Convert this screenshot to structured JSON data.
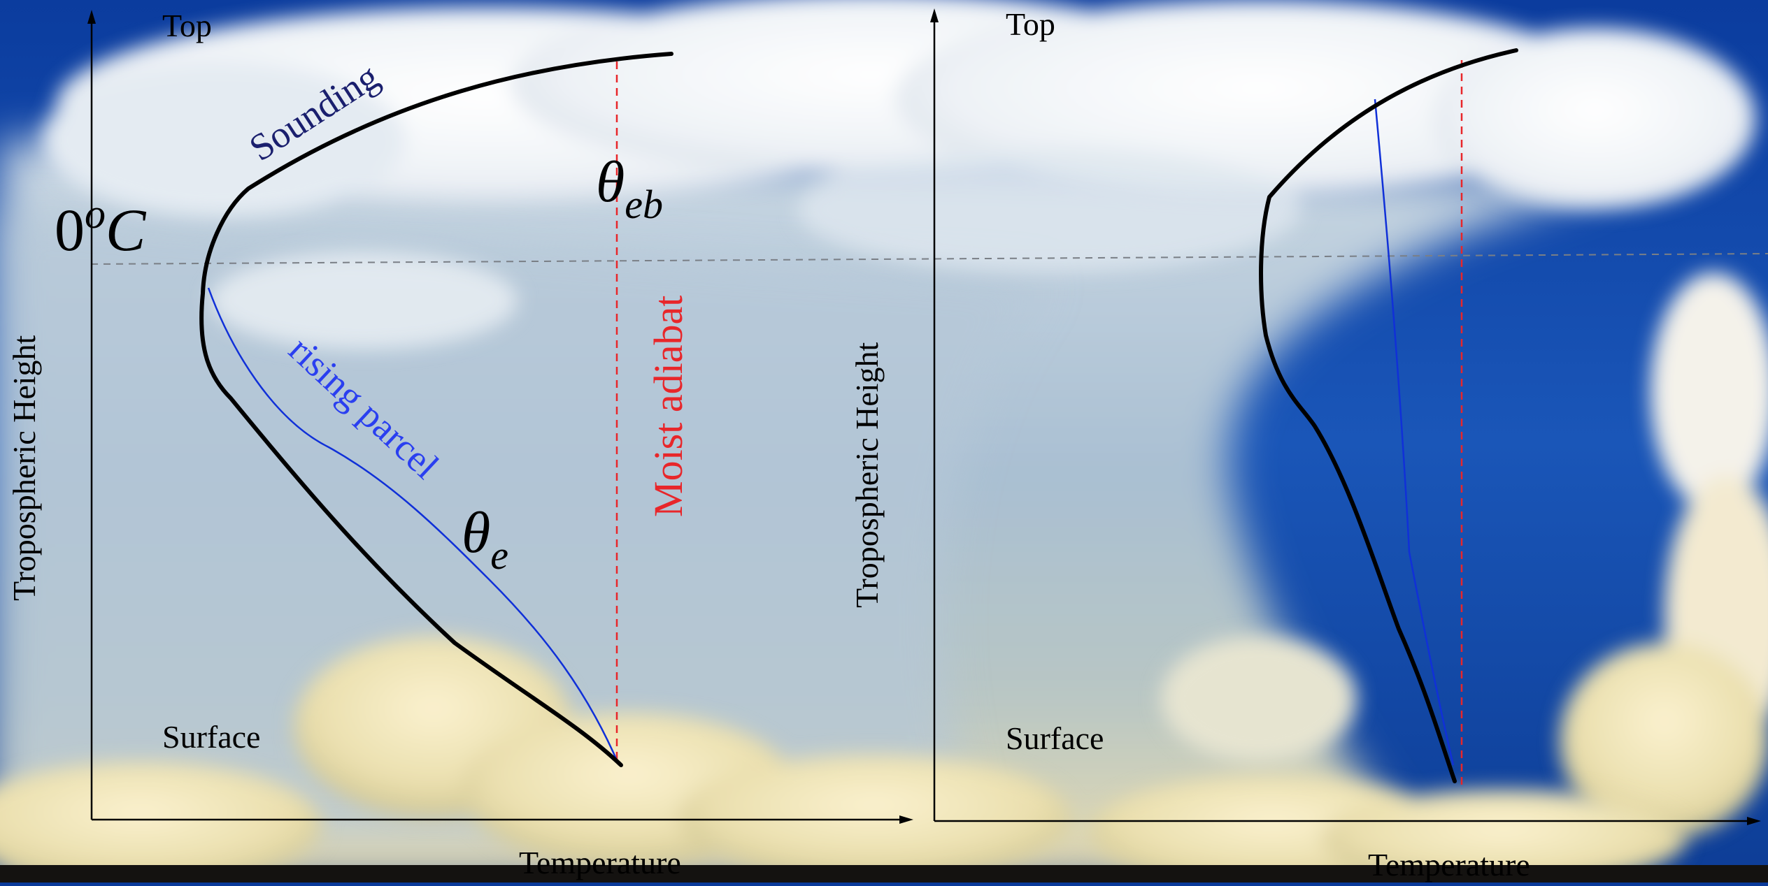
{
  "left_panel": {
    "top_label": "Top",
    "surface_label": "Surface",
    "y_axis_label": "Tropospheric Height",
    "x_axis_label": "Temperature",
    "freezing_level_label": "0",
    "freezing_level_superscript": "o",
    "freezing_level_unit": "C",
    "sounding_label": "Sounding",
    "parcel_label": "rising parcel",
    "theta_e_symbol": "θ",
    "theta_e_subscript": "e",
    "theta_eb_symbol": "θ",
    "theta_eb_subscript": "eb",
    "moist_adiabat_label": "Moist adiabat"
  },
  "right_panel": {
    "top_label": "Top",
    "surface_label": "Surface",
    "y_axis_label": "Tropospheric Height",
    "x_axis_label": "Temperature"
  },
  "colors": {
    "sounding": "#000000",
    "parcel": "#1030d8",
    "moist_adiabat": "#e8262a",
    "parcel_label": "#2a3ff0",
    "sounding_label": "#1a1f6e",
    "freezing_line": "#7a7f86",
    "axes": "#000000"
  }
}
